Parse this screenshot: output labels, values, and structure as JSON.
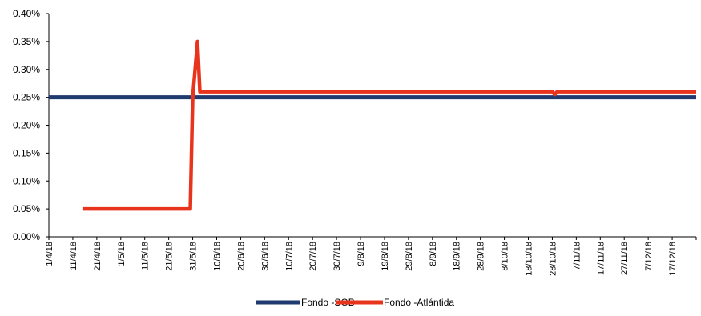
{
  "chart_data": {
    "type": "line",
    "x_ticks": [
      "1/4/18",
      "11/4/18",
      "21/4/18",
      "1/5/18",
      "11/5/18",
      "21/5/18",
      "31/5/18",
      "10/6/18",
      "20/6/18",
      "30/6/18",
      "10/7/18",
      "20/7/18",
      "30/7/18",
      "9/8/18",
      "19/8/18",
      "29/8/18",
      "8/9/18",
      "18/9/18",
      "28/9/18",
      "8/10/18",
      "18/10/18",
      "28/10/18",
      "7/11/18",
      "17/11/18",
      "27/11/18",
      "7/12/18",
      "17/12/18"
    ],
    "xlim": [
      "2018-04-01",
      "2018-12-27"
    ],
    "y_ticks": [
      "0.00%",
      "0.05%",
      "0.10%",
      "0.15%",
      "0.20%",
      "0.25%",
      "0.30%",
      "0.35%",
      "0.40%"
    ],
    "ylim": [
      0,
      0.4
    ],
    "y_unit": "%",
    "grid": false,
    "legend_position": "bottom",
    "series": [
      {
        "name": "Fondo -SGB",
        "color": "#1f3a6e",
        "points": [
          [
            "2018-04-01",
            0.25
          ],
          [
            "2018-12-27",
            0.25
          ]
        ]
      },
      {
        "name": "Fondo -Atlántida",
        "color": "#e8341c",
        "points": [
          [
            "2018-04-15",
            0.05
          ],
          [
            "2018-05-30",
            0.05
          ],
          [
            "2018-05-31",
            0.25
          ],
          [
            "2018-06-02",
            0.35
          ],
          [
            "2018-06-03",
            0.26
          ],
          [
            "2018-10-28",
            0.26
          ],
          [
            "2018-10-29",
            0.255
          ],
          [
            "2018-10-30",
            0.26
          ],
          [
            "2018-12-27",
            0.26
          ]
        ]
      }
    ]
  }
}
